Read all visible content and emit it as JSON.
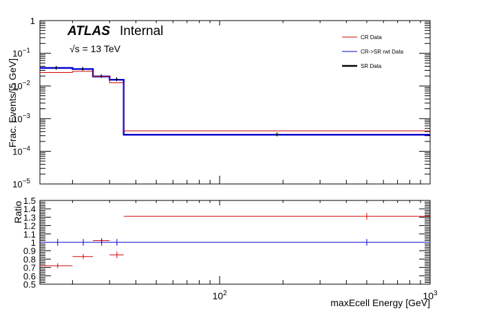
{
  "chart_data": [
    {
      "type": "histogram",
      "panel": "main",
      "ylabel": "Frac. Events/[5 GeV]",
      "yscale": "log",
      "ylim": [
        1e-05,
        1
      ],
      "xscale": "log",
      "xlim": [
        14,
        1000
      ],
      "ytick_labels": [
        {
          "value": 1,
          "base": "1",
          "exp": ""
        },
        {
          "value": 0.1,
          "base": "10",
          "exp": "−1"
        },
        {
          "value": 0.01,
          "base": "10",
          "exp": "−2"
        },
        {
          "value": 0.001,
          "base": "10",
          "exp": "−3"
        },
        {
          "value": 0.0001,
          "base": "10",
          "exp": "−4"
        },
        {
          "value": 1e-05,
          "base": "10",
          "exp": "−5"
        }
      ],
      "annotations": {
        "experiment": "ATLAS",
        "status": "Internal",
        "energy_prefix": "√s",
        "energy_text": " = 13 TeV"
      },
      "legend": {
        "placement": "top-right",
        "entries": [
          {
            "name": "CR Data",
            "color": "#d40000"
          },
          {
            "name": "CR->SR rwt Data",
            "color": "#0000cc"
          },
          {
            "name": "SR Data",
            "color": "#000000"
          }
        ]
      },
      "bin_edges": [
        14,
        20,
        25,
        30,
        35,
        1000
      ],
      "series": [
        {
          "name": "CR Data",
          "color": "#d40000",
          "values": [
            0.026,
            0.028,
            0.0195,
            0.0125,
            0.00042
          ]
        },
        {
          "name": "CR->SR rwt Data",
          "color": "#0000cc",
          "values": [
            0.0355,
            0.033,
            0.0195,
            0.0155,
            0.00032
          ]
        },
        {
          "name": "SR Data",
          "color": "#000000",
          "values": [
            0.036,
            0.0335,
            0.02,
            0.016,
            0.00033
          ]
        }
      ]
    },
    {
      "type": "scatter",
      "panel": "ratio",
      "ylabel": "Ratio",
      "xlabel": "maxEcell Energy [GeV]",
      "xscale": "log",
      "xlim": [
        14,
        1000
      ],
      "ylim": [
        0.5,
        1.5
      ],
      "ytick_labels": [
        "0.5",
        "0.6",
        "0.7",
        "0.8",
        "0.9",
        "1",
        "1.1",
        "1.2",
        "1.3",
        "1.4",
        "1.5"
      ],
      "xtick_labels": [
        {
          "value": 100,
          "base": "10",
          "exp": "2"
        },
        {
          "value": 1000,
          "base": "10",
          "exp": "3"
        }
      ],
      "reference_line": 1.0,
      "series": [
        {
          "name": "CR Data",
          "color": "#d40000",
          "points": [
            {
              "x": 17,
              "xlo": 14,
              "xhi": 20,
              "y": 0.72,
              "yerr": 0.03
            },
            {
              "x": 22.5,
              "xlo": 20,
              "xhi": 25,
              "y": 0.83,
              "yerr": 0.03
            },
            {
              "x": 27.5,
              "xlo": 25,
              "xhi": 30,
              "y": 1.02,
              "yerr": 0.03
            },
            {
              "x": 32.5,
              "xlo": 30,
              "xhi": 35,
              "y": 0.85,
              "yerr": 0.04
            },
            {
              "x": 500,
              "xlo": 35,
              "xhi": 1000,
              "y": 1.31,
              "yerr": 0.04
            }
          ]
        },
        {
          "name": "CR->SR rwt Data",
          "color": "#0000cc",
          "points": [
            {
              "x": 17,
              "xlo": 14,
              "xhi": 20,
              "y": 1.0,
              "yerr": 0.04
            },
            {
              "x": 22.5,
              "xlo": 20,
              "xhi": 25,
              "y": 1.0,
              "yerr": 0.04
            },
            {
              "x": 27.5,
              "xlo": 25,
              "xhi": 30,
              "y": 1.0,
              "yerr": 0.04
            },
            {
              "x": 32.5,
              "xlo": 30,
              "xhi": 35,
              "y": 1.0,
              "yerr": 0.04
            },
            {
              "x": 500,
              "xlo": 35,
              "xhi": 1000,
              "y": 1.0,
              "yerr": 0.04
            }
          ]
        }
      ]
    }
  ]
}
